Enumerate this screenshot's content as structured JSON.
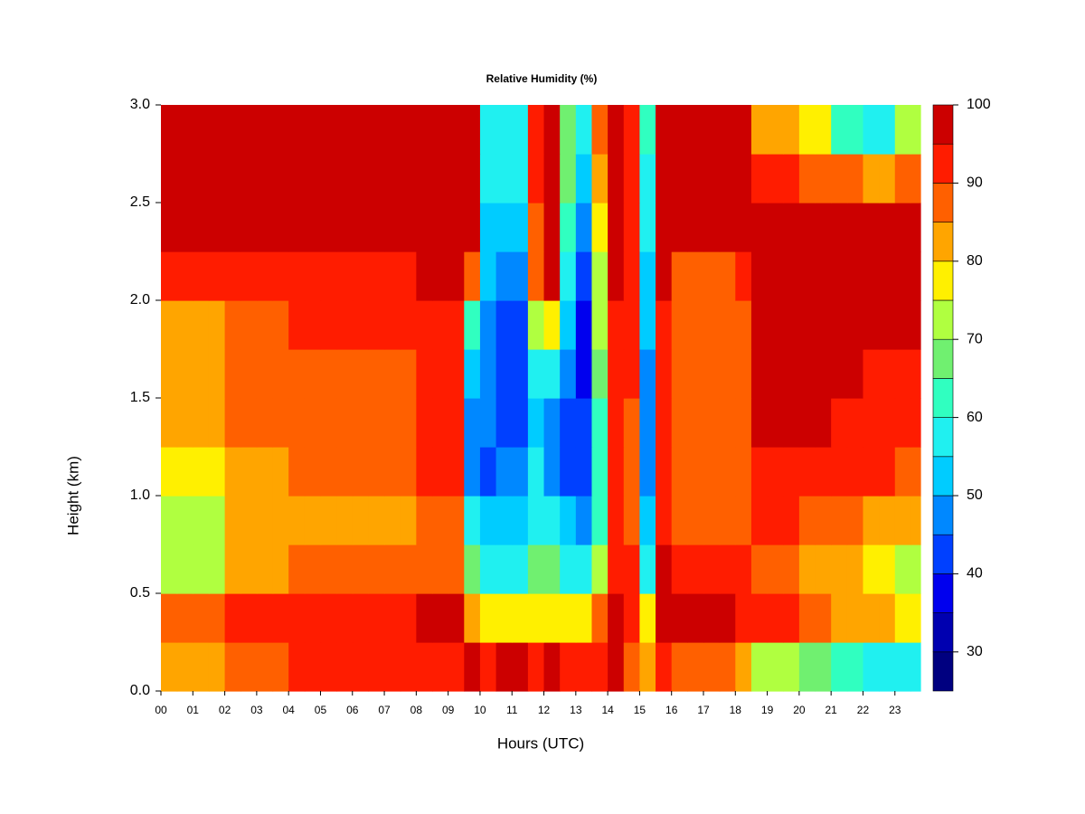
{
  "chart_data": {
    "type": "heatmap",
    "title": "Relative Humidity (%)",
    "xlabel": "Hours (UTC)",
    "ylabel": "Height (km)",
    "xlim": [
      0,
      23.8
    ],
    "ylim": [
      0,
      3
    ],
    "xticks": [
      {
        "value": 0,
        "label": "00"
      },
      {
        "value": 1,
        "label": "01"
      },
      {
        "value": 2,
        "label": "02"
      },
      {
        "value": 3,
        "label": "03"
      },
      {
        "value": 4,
        "label": "04"
      },
      {
        "value": 5,
        "label": "05"
      },
      {
        "value": 6,
        "label": "06"
      },
      {
        "value": 7,
        "label": "07"
      },
      {
        "value": 8,
        "label": "08"
      },
      {
        "value": 9,
        "label": "09"
      },
      10,
      11,
      12,
      13,
      14,
      15,
      16,
      17,
      18,
      19,
      20,
      21,
      22,
      23
    ],
    "yticks": [
      {
        "value": 0,
        "label": "0.0"
      },
      {
        "value": 0.5,
        "label": "0.5"
      },
      {
        "value": 1,
        "label": "1.0"
      },
      {
        "value": 1.5,
        "label": "1.5"
      },
      {
        "value": 2,
        "label": "2.0"
      },
      {
        "value": 2.5,
        "label": "2.5"
      },
      {
        "value": 3,
        "label": "3.0"
      }
    ],
    "xbins": [
      0,
      0.5,
      1,
      1.5,
      2,
      2.5,
      3,
      3.5,
      4,
      4.5,
      5,
      5.5,
      6,
      6.5,
      7,
      7.5,
      8,
      8.5,
      9,
      9.5,
      10,
      10.5,
      11,
      11.5,
      12,
      12.5,
      13,
      13.5,
      14,
      14.5,
      15,
      15.5,
      16,
      16.5,
      17,
      17.5,
      18,
      18.5,
      19,
      19.5,
      20,
      20.5,
      21,
      21.5,
      22,
      22.5,
      23,
      23.5,
      23.8
    ],
    "ybins": [
      0,
      0.25,
      0.5,
      0.75,
      1,
      1.25,
      1.5,
      1.75,
      2,
      2.25,
      2.5,
      2.75,
      3
    ],
    "z": [
      [
        80,
        80,
        80,
        80,
        88,
        88,
        88,
        88,
        92,
        92,
        92,
        92,
        92,
        92,
        92,
        92,
        93,
        93,
        93,
        95,
        94,
        95,
        95,
        94,
        95,
        94,
        94,
        93,
        95,
        85,
        80,
        94,
        85,
        85,
        85,
        85,
        80,
        70,
        70,
        70,
        65,
        65,
        62,
        62,
        58,
        58,
        55,
        55
      ],
      [
        85,
        85,
        85,
        85,
        92,
        92,
        92,
        92,
        94,
        94,
        94,
        94,
        94,
        94,
        94,
        94,
        96,
        96,
        96,
        80,
        75,
        78,
        78,
        78,
        75,
        77,
        78,
        85,
        96,
        92,
        75,
        98,
        95,
        95,
        95,
        95,
        94,
        90,
        90,
        90,
        88,
        88,
        82,
        82,
        80,
        80,
        76,
        76
      ],
      [
        72,
        72,
        72,
        72,
        82,
        82,
        82,
        82,
        85,
        85,
        85,
        85,
        85,
        85,
        85,
        85,
        88,
        88,
        88,
        65,
        58,
        55,
        55,
        65,
        68,
        55,
        55,
        70,
        94,
        90,
        55,
        96,
        92,
        92,
        92,
        92,
        90,
        86,
        86,
        86,
        84,
        84,
        80,
        80,
        78,
        78,
        74,
        74
      ],
      [
        74,
        74,
        74,
        74,
        80,
        80,
        80,
        80,
        84,
        84,
        84,
        84,
        84,
        84,
        84,
        84,
        88,
        88,
        88,
        55,
        50,
        50,
        50,
        58,
        55,
        50,
        48,
        62,
        92,
        88,
        50,
        93,
        88,
        88,
        88,
        88,
        88,
        90,
        90,
        90,
        88,
        88,
        86,
        86,
        84,
        84,
        80,
        80
      ],
      [
        77,
        77,
        77,
        77,
        83,
        83,
        83,
        83,
        86,
        86,
        86,
        86,
        86,
        86,
        86,
        86,
        90,
        90,
        90,
        45,
        42,
        48,
        48,
        55,
        45,
        42,
        42,
        60,
        92,
        88,
        45,
        92,
        87,
        87,
        87,
        87,
        88,
        94,
        94,
        94,
        93,
        93,
        92,
        92,
        90,
        90,
        88,
        88
      ],
      [
        80,
        80,
        80,
        80,
        85,
        85,
        85,
        85,
        88,
        88,
        88,
        88,
        88,
        88,
        88,
        88,
        92,
        92,
        92,
        48,
        45,
        44,
        44,
        52,
        48,
        44,
        40,
        62,
        92,
        88,
        45,
        90,
        85,
        85,
        85,
        85,
        86,
        96,
        96,
        96,
        95,
        95,
        94,
        94,
        93,
        93,
        92,
        92
      ],
      [
        80,
        80,
        80,
        80,
        86,
        86,
        86,
        86,
        89,
        89,
        89,
        89,
        89,
        89,
        89,
        89,
        92,
        92,
        92,
        52,
        45,
        42,
        42,
        55,
        55,
        48,
        38,
        65,
        93,
        90,
        48,
        90,
        86,
        86,
        86,
        86,
        88,
        96,
        96,
        96,
        96,
        96,
        95,
        95,
        94,
        94,
        93,
        93
      ],
      [
        82,
        82,
        82,
        82,
        88,
        88,
        88,
        88,
        90,
        90,
        90,
        90,
        90,
        90,
        90,
        90,
        94,
        94,
        94,
        60,
        48,
        40,
        40,
        70,
        75,
        52,
        38,
        70,
        94,
        90,
        50,
        92,
        86,
        86,
        86,
        86,
        88,
        98,
        98,
        98,
        98,
        98,
        98,
        98,
        97,
        97,
        97,
        97
      ],
      [
        90,
        90,
        90,
        90,
        93,
        93,
        93,
        93,
        92,
        92,
        92,
        92,
        92,
        92,
        92,
        92,
        96,
        96,
        96,
        85,
        50,
        45,
        45,
        85,
        96,
        58,
        40,
        72,
        95,
        92,
        52,
        95,
        88,
        88,
        88,
        88,
        92,
        99,
        99,
        99,
        99,
        99,
        99,
        99,
        99,
        99,
        99,
        99
      ],
      [
        96,
        96,
        96,
        96,
        98,
        98,
        98,
        98,
        97,
        97,
        97,
        97,
        97,
        97,
        97,
        97,
        98,
        98,
        98,
        95,
        52,
        50,
        50,
        88,
        98,
        60,
        45,
        75,
        96,
        92,
        55,
        97,
        97,
        97,
        97,
        97,
        98,
        99,
        99,
        99,
        99,
        99,
        98,
        98,
        97,
        97,
        98,
        98
      ],
      [
        98,
        98,
        98,
        98,
        98,
        98,
        98,
        98,
        99,
        99,
        99,
        99,
        99,
        99,
        99,
        99,
        99,
        99,
        99,
        96,
        55,
        55,
        55,
        90,
        99,
        65,
        52,
        80,
        96,
        92,
        58,
        98,
        99,
        99,
        99,
        99,
        99,
        90,
        90,
        90,
        88,
        88,
        85,
        85,
        82,
        82,
        88,
        88
      ],
      [
        98,
        98,
        98,
        98,
        99,
        99,
        99,
        99,
        99,
        99,
        99,
        99,
        99,
        99,
        99,
        99,
        99,
        99,
        99,
        96,
        55,
        58,
        58,
        92,
        99,
        68,
        55,
        85,
        96,
        94,
        60,
        99,
        99,
        99,
        99,
        99,
        99,
        82,
        82,
        82,
        75,
        75,
        62,
        62,
        55,
        55,
        70,
        70
      ]
    ],
    "levels": [
      25,
      30,
      35,
      40,
      45,
      50,
      55,
      60,
      65,
      70,
      75,
      80,
      85,
      90,
      95,
      100
    ],
    "colors": [
      "#000080",
      "#0000b0",
      "#0000ee",
      "#0040ff",
      "#0088ff",
      "#00ccff",
      "#20f0f0",
      "#30ffc0",
      "#70f070",
      "#b0ff40",
      "#fff000",
      "#ffa500",
      "#ff6000",
      "#ff1c00",
      "#cc0000",
      "#800000"
    ],
    "zticks": [
      30,
      40,
      50,
      60,
      70,
      80,
      90,
      100
    ]
  }
}
